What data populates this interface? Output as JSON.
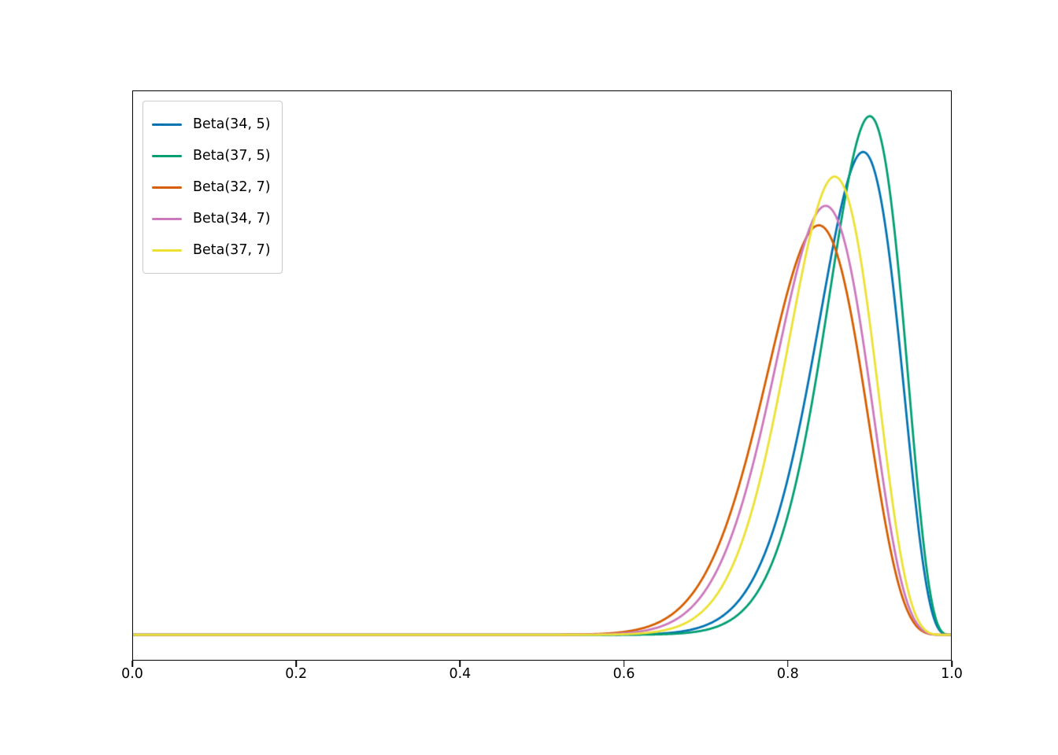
{
  "figure": {
    "background": "#ffffff"
  },
  "chart_data": {
    "type": "line",
    "title": "",
    "xlabel": "",
    "ylabel": "",
    "curve_family": "beta_pdf",
    "xlim": [
      0.0,
      1.0
    ],
    "ylim": [
      -0.42,
      8.86
    ],
    "xtick_values": [
      0.0,
      0.2,
      0.4,
      0.6,
      0.8,
      1.0
    ],
    "xtick_labels": [
      "0.0",
      "0.2",
      "0.4",
      "0.6",
      "0.8",
      "1.0"
    ],
    "ytick_labels": [],
    "grid": false,
    "legend_position": "upper left",
    "line_width": 2.8,
    "series": [
      {
        "label": "Beta(34, 5)",
        "alpha": 34,
        "beta": 5,
        "color": "#0173b2",
        "peak_x": 0.892,
        "peak_y": 7.86
      },
      {
        "label": "Beta(37, 5)",
        "alpha": 37,
        "beta": 5,
        "color": "#029e73",
        "peak_x": 0.9,
        "peak_y": 8.44
      },
      {
        "label": "Beta(32, 7)",
        "alpha": 32,
        "beta": 7,
        "color": "#d55e00",
        "peak_x": 0.838,
        "peak_y": 6.67
      },
      {
        "label": "Beta(34, 7)",
        "alpha": 34,
        "beta": 7,
        "color": "#cc78bc",
        "peak_x": 0.846,
        "peak_y": 6.98
      },
      {
        "label": "Beta(37, 7)",
        "alpha": 37,
        "beta": 7,
        "color": "#ece133",
        "peak_x": 0.857,
        "peak_y": 7.46
      }
    ]
  }
}
